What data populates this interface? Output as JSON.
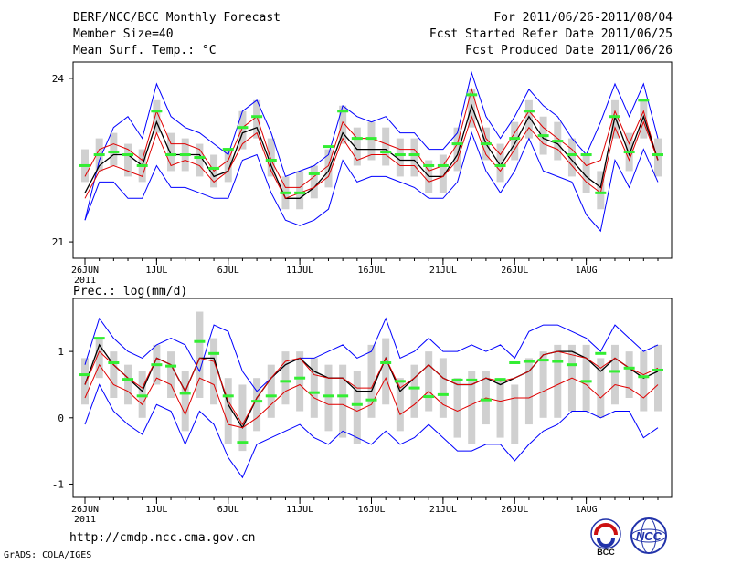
{
  "header": {
    "title": "DERF/NCC/BCC Monthly Forecast",
    "member_size": "Member Size=40",
    "variable1": "Mean Surf. Temp.: °C",
    "period": "For 2011/06/26-2011/08/04",
    "refer_date": "Fcst Started Refer Date 2011/06/25",
    "produced_date": "Fcst Produced Date 2011/06/26"
  },
  "footer": {
    "url": "http://cmdp.ncc.cma.gov.cn",
    "grads": "GrADS: COLA/IGES",
    "logo_bcc": "BCC",
    "logo_ncc": "NCC"
  },
  "colors": {
    "blue": "#0000ff",
    "red": "#e00000",
    "black": "#000000",
    "green": "#33ee33",
    "box": "#d0d0d0"
  },
  "chart_data": [
    {
      "type": "line",
      "title": "Mean Surf. Temp.: °C",
      "xlabel": "",
      "ylabel": "°C",
      "ylim": [
        20.7,
        24.3
      ],
      "yticks": [
        21,
        24
      ],
      "x_tick_days": [
        0,
        5,
        10,
        15,
        20,
        25,
        30,
        35
      ],
      "x_tick_labels": [
        "26JUN",
        "1JUL",
        "6JUL",
        "11JUL",
        "16JUL",
        "21JUL",
        "26JUL",
        "1AUG"
      ],
      "x_year_label": "2011",
      "series": [
        {
          "name": "max",
          "color": "blue",
          "values": [
            21.4,
            22.5,
            23.1,
            23.3,
            22.9,
            23.9,
            23.3,
            23.1,
            23.0,
            22.8,
            22.6,
            23.4,
            23.6,
            23.0,
            22.2,
            22.3,
            22.4,
            22.6,
            23.5,
            23.3,
            23.2,
            23.3,
            23.0,
            23.0,
            22.7,
            22.7,
            23.0,
            24.1,
            23.3,
            22.9,
            23.3,
            23.8,
            23.5,
            23.3,
            22.9,
            22.6,
            23.2,
            23.9,
            23.3,
            23.9,
            22.9
          ]
        },
        {
          "name": "upper",
          "color": "red",
          "values": [
            22.2,
            22.7,
            22.8,
            22.7,
            22.5,
            23.4,
            22.8,
            22.8,
            22.7,
            22.3,
            22.5,
            23.1,
            23.3,
            22.5,
            22.0,
            22.0,
            22.2,
            22.4,
            23.2,
            22.9,
            22.9,
            22.8,
            22.7,
            22.7,
            22.3,
            22.4,
            22.8,
            23.8,
            22.9,
            22.6,
            23.0,
            23.4,
            23.1,
            22.9,
            22.7,
            22.4,
            22.5,
            23.4,
            22.8,
            23.4,
            22.5
          ]
        },
        {
          "name": "mean",
          "color": "black",
          "values": [
            21.9,
            22.4,
            22.6,
            22.6,
            22.4,
            23.2,
            22.6,
            22.6,
            22.6,
            22.2,
            22.3,
            23.0,
            23.1,
            22.4,
            21.8,
            21.8,
            22.0,
            22.3,
            23.0,
            22.7,
            22.7,
            22.7,
            22.5,
            22.5,
            22.2,
            22.2,
            22.6,
            23.5,
            22.8,
            22.4,
            22.8,
            23.3,
            22.9,
            22.8,
            22.5,
            22.2,
            22.0,
            23.3,
            22.6,
            23.3,
            22.5
          ]
        },
        {
          "name": "lower",
          "color": "red",
          "values": [
            21.8,
            22.3,
            22.4,
            22.3,
            22.2,
            23.0,
            22.4,
            22.5,
            22.4,
            22.1,
            22.3,
            22.8,
            23.0,
            22.3,
            21.8,
            21.9,
            22.0,
            22.2,
            22.9,
            22.5,
            22.6,
            22.6,
            22.4,
            22.4,
            22.1,
            22.2,
            22.5,
            23.3,
            22.6,
            22.3,
            22.7,
            23.1,
            22.8,
            22.7,
            22.4,
            22.1,
            21.9,
            23.1,
            22.5,
            23.2,
            22.5
          ]
        },
        {
          "name": "min",
          "color": "blue",
          "values": [
            21.4,
            22.1,
            22.1,
            21.8,
            21.8,
            22.4,
            22.0,
            22.0,
            21.9,
            21.8,
            21.8,
            22.5,
            22.6,
            21.9,
            21.4,
            21.3,
            21.4,
            21.6,
            22.5,
            22.1,
            22.2,
            22.2,
            22.1,
            22.0,
            21.8,
            21.8,
            22.1,
            23.0,
            22.3,
            21.9,
            22.3,
            22.9,
            22.3,
            22.2,
            22.1,
            21.5,
            21.2,
            22.5,
            22.0,
            22.7,
            22.1
          ]
        }
      ],
      "box_ranges": [
        [
          22.1,
          22.7
        ],
        [
          22.3,
          22.9
        ],
        [
          22.4,
          23.0
        ],
        [
          22.2,
          22.8
        ],
        [
          22.1,
          22.7
        ],
        [
          23.0,
          23.6
        ],
        [
          22.3,
          23.0
        ],
        [
          22.3,
          22.9
        ],
        [
          22.2,
          22.8
        ],
        [
          22.0,
          22.6
        ],
        [
          22.1,
          22.7
        ],
        [
          22.7,
          23.4
        ],
        [
          22.9,
          23.6
        ],
        [
          22.2,
          22.9
        ],
        [
          21.6,
          22.2
        ],
        [
          21.6,
          22.3
        ],
        [
          21.8,
          22.4
        ],
        [
          22.0,
          22.7
        ],
        [
          22.8,
          23.5
        ],
        [
          22.4,
          23.1
        ],
        [
          22.5,
          23.2
        ],
        [
          22.4,
          23.1
        ],
        [
          22.2,
          22.9
        ],
        [
          22.2,
          22.9
        ],
        [
          21.9,
          22.5
        ],
        [
          21.9,
          22.6
        ],
        [
          22.3,
          23.1
        ],
        [
          23.1,
          23.8
        ],
        [
          22.5,
          23.1
        ],
        [
          22.1,
          22.8
        ],
        [
          22.5,
          23.2
        ],
        [
          22.9,
          23.6
        ],
        [
          22.6,
          23.3
        ],
        [
          22.5,
          23.2
        ],
        [
          22.2,
          22.9
        ],
        [
          21.9,
          22.6
        ],
        [
          21.6,
          22.3
        ],
        [
          22.9,
          23.6
        ],
        [
          22.3,
          23.0
        ],
        [
          22.9,
          23.6
        ],
        [
          22.2,
          22.9
        ]
      ],
      "green_marks": [
        22.4,
        22.6,
        22.65,
        22.6,
        22.4,
        23.4,
        22.6,
        22.6,
        22.55,
        22.35,
        22.7,
        23.1,
        23.3,
        22.5,
        21.9,
        21.9,
        22.25,
        22.75,
        23.4,
        22.9,
        22.9,
        22.65,
        22.6,
        22.6,
        22.4,
        22.4,
        22.8,
        23.7,
        22.8,
        22.4,
        22.9,
        23.4,
        22.95,
        22.85,
        22.6,
        22.6,
        21.9,
        23.3,
        22.65,
        23.6,
        22.6
      ]
    },
    {
      "type": "line",
      "title": "Prec.: log(mm/d)",
      "xlabel": "",
      "ylabel": "log(mm/d)",
      "ylim": [
        -1.2,
        1.8
      ],
      "yticks": [
        -1,
        0,
        1
      ],
      "x_tick_days": [
        0,
        5,
        10,
        15,
        20,
        25,
        30,
        35
      ],
      "x_tick_labels": [
        "26JUN",
        "1JUL",
        "6JUL",
        "11JUL",
        "16JUL",
        "21JUL",
        "26JUL",
        "1AUG"
      ],
      "x_year_label": "2011",
      "series": [
        {
          "name": "max",
          "color": "blue",
          "values": [
            0.8,
            1.5,
            1.2,
            1.0,
            0.9,
            1.1,
            1.2,
            1.1,
            0.7,
            1.4,
            1.3,
            0.7,
            0.4,
            0.6,
            0.8,
            0.9,
            0.9,
            1.0,
            1.1,
            0.9,
            1.0,
            1.5,
            0.9,
            1.0,
            1.2,
            1.0,
            1.0,
            1.1,
            1.0,
            1.1,
            0.9,
            1.3,
            1.4,
            1.4,
            1.3,
            1.2,
            1.0,
            1.4,
            1.2,
            1.0,
            1.1
          ]
        },
        {
          "name": "mean",
          "color": "black",
          "values": [
            0.5,
            1.1,
            0.8,
            0.6,
            0.4,
            0.9,
            0.8,
            0.4,
            0.9,
            0.9,
            0.2,
            -0.15,
            0.3,
            0.6,
            0.8,
            0.9,
            0.7,
            0.6,
            0.6,
            0.4,
            0.4,
            0.9,
            0.4,
            0.6,
            0.8,
            0.6,
            0.5,
            0.5,
            0.6,
            0.5,
            0.6,
            0.7,
            0.95,
            1.0,
            1.0,
            0.9,
            0.7,
            0.9,
            0.75,
            0.6,
            0.7
          ]
        },
        {
          "name": "upper",
          "color": "red",
          "values": [
            0.5,
            1.0,
            0.8,
            0.6,
            0.45,
            0.9,
            0.8,
            0.4,
            0.9,
            0.85,
            0.25,
            -0.1,
            0.3,
            0.6,
            0.85,
            0.9,
            0.65,
            0.6,
            0.6,
            0.45,
            0.45,
            0.9,
            0.45,
            0.6,
            0.8,
            0.6,
            0.5,
            0.5,
            0.6,
            0.55,
            0.6,
            0.7,
            0.95,
            1.0,
            0.95,
            0.9,
            0.75,
            0.9,
            0.75,
            0.65,
            0.75
          ]
        },
        {
          "name": "lower",
          "color": "red",
          "values": [
            0.3,
            0.8,
            0.5,
            0.4,
            0.2,
            0.6,
            0.5,
            0.05,
            0.6,
            0.5,
            -0.1,
            -0.15,
            0.0,
            0.2,
            0.4,
            0.5,
            0.3,
            0.2,
            0.2,
            0.1,
            0.2,
            0.6,
            0.05,
            0.2,
            0.4,
            0.2,
            0.1,
            0.2,
            0.3,
            0.25,
            0.3,
            0.3,
            0.4,
            0.5,
            0.6,
            0.5,
            0.3,
            0.5,
            0.45,
            0.3,
            0.5
          ]
        },
        {
          "name": "min",
          "color": "blue",
          "values": [
            -0.1,
            0.5,
            0.1,
            -0.1,
            -0.25,
            0.2,
            0.1,
            -0.4,
            0.1,
            -0.1,
            -0.6,
            -0.9,
            -0.4,
            -0.3,
            -0.2,
            -0.1,
            -0.3,
            -0.4,
            -0.2,
            -0.3,
            -0.4,
            -0.2,
            -0.4,
            -0.3,
            -0.1,
            -0.3,
            -0.5,
            -0.5,
            -0.4,
            -0.4,
            -0.65,
            -0.4,
            -0.2,
            -0.1,
            0.1,
            0.1,
            0.0,
            0.1,
            0.1,
            -0.3,
            -0.15
          ]
        }
      ],
      "box_ranges": [
        [
          0.2,
          0.9
        ],
        [
          0.6,
          1.2
        ],
        [
          0.3,
          1.0
        ],
        [
          0.2,
          0.8
        ],
        [
          0.0,
          0.7
        ],
        [
          0.5,
          1.1
        ],
        [
          0.3,
          1.0
        ],
        [
          -0.2,
          0.7
        ],
        [
          0.3,
          1.6
        ],
        [
          0.2,
          1.2
        ],
        [
          -0.4,
          0.6
        ],
        [
          -0.5,
          0.5
        ],
        [
          -0.2,
          0.6
        ],
        [
          0.0,
          0.8
        ],
        [
          0.2,
          1.0
        ],
        [
          0.1,
          1.0
        ],
        [
          0.0,
          0.9
        ],
        [
          -0.2,
          0.8
        ],
        [
          -0.3,
          0.8
        ],
        [
          -0.4,
          0.7
        ],
        [
          0.0,
          1.1
        ],
        [
          0.2,
          1.2
        ],
        [
          -0.2,
          0.6
        ],
        [
          0.0,
          0.8
        ],
        [
          0.1,
          1.0
        ],
        [
          0.0,
          0.9
        ],
        [
          -0.3,
          0.6
        ],
        [
          -0.4,
          0.7
        ],
        [
          -0.1,
          0.7
        ],
        [
          -0.3,
          0.6
        ],
        [
          -0.4,
          0.5
        ],
        [
          -0.1,
          0.9
        ],
        [
          0.0,
          1.0
        ],
        [
          0.0,
          1.1
        ],
        [
          0.1,
          1.1
        ],
        [
          0.1,
          1.1
        ],
        [
          0.0,
          0.9
        ],
        [
          0.2,
          1.1
        ],
        [
          0.3,
          1.0
        ],
        [
          0.1,
          1.0
        ],
        [
          0.1,
          1.1
        ]
      ],
      "green_marks": [
        0.65,
        1.2,
        0.83,
        0.58,
        0.33,
        0.8,
        0.78,
        0.37,
        1.15,
        0.97,
        0.33,
        -0.37,
        0.25,
        0.33,
        0.55,
        0.6,
        0.38,
        0.33,
        0.33,
        0.2,
        0.27,
        0.83,
        0.55,
        0.45,
        0.32,
        0.35,
        0.57,
        0.57,
        0.27,
        0.58,
        0.83,
        0.85,
        0.87,
        0.85,
        0.8,
        0.55,
        0.97,
        0.7,
        0.75,
        0.62,
        0.72
      ]
    }
  ]
}
